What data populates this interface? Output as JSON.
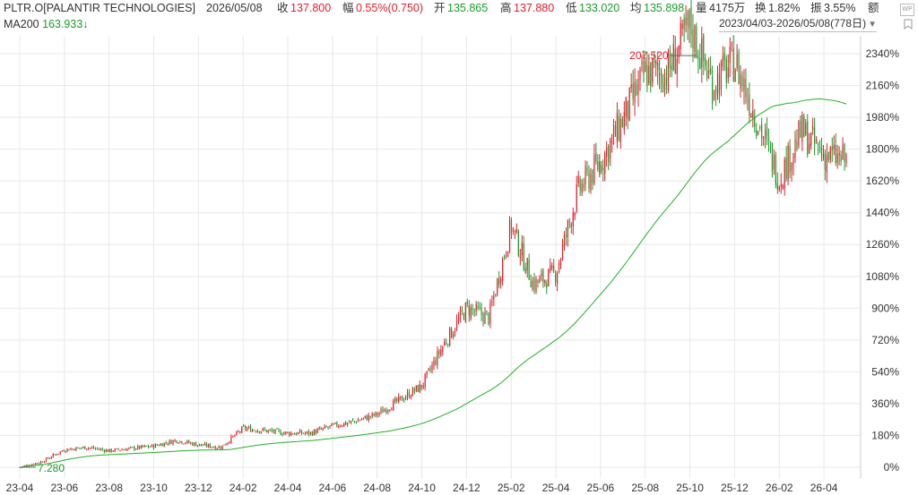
{
  "header": {
    "symbol": "PLTR.O[PALANTIR TECHNOLOGIES]",
    "date": "2026/05/08",
    "close_label": "收",
    "close_value": "137.800",
    "change_label": "幅",
    "change_value": "0.55%(0.750)",
    "open_label": "开",
    "open_value": "135.865",
    "high_label": "高",
    "high_value": "137.880",
    "low_label": "低",
    "low_value": "133.020",
    "avg_label": "均",
    "avg_value": "135.898",
    "volume_label": "量",
    "volume_value": "4175万",
    "turnover_label": "换",
    "turnover_value": "1.82%",
    "amplitude_label": "振",
    "amplitude_value": "3.55%",
    "amount_label": "额"
  },
  "ma": {
    "label": "MA200",
    "value": "163.933",
    "arrow": "↓"
  },
  "range": {
    "text": "2023/04/03-2026/05/08(778日)",
    "dropdown_icon": "triangle-down-icon"
  },
  "icons": {
    "top_right": "wp-icon",
    "bookmark": "bookmark-icon"
  },
  "colors": {
    "up": "#e0202b",
    "down": "#1a9c2a",
    "ma200": "#22b022",
    "grid": "#e8e8e8"
  },
  "chart_data": {
    "type": "candlestick",
    "scale": "percent change from first close",
    "y_ticks": [
      "2340%",
      "2160%",
      "1980%",
      "1800%",
      "1620%",
      "1440%",
      "1260%",
      "1080%",
      "900%",
      "720%",
      "540%",
      "360%",
      "180%",
      "0%"
    ],
    "y_tick_values": [
      2340,
      2160,
      1980,
      1800,
      1620,
      1440,
      1260,
      1080,
      900,
      720,
      540,
      360,
      180,
      0
    ],
    "ylim": [
      -40,
      2440
    ],
    "x_ticks": [
      "23-04",
      "23-06",
      "23-08",
      "23-10",
      "23-12",
      "24-02",
      "24-04",
      "24-06",
      "24-08",
      "24-10",
      "24-12",
      "25-02",
      "25-04",
      "25-06",
      "25-08",
      "25-10",
      "25-12",
      "26-02",
      "26-04"
    ],
    "annotations": [
      {
        "label": "207.520",
        "x": "25-10",
        "y_pct": 2390,
        "kind": "high"
      },
      {
        "label": "7.280",
        "x": "23-04",
        "y_pct": 0,
        "kind": "low"
      }
    ],
    "price_path": [
      [
        "23-04",
        7.5,
        0
      ],
      [
        "23-05",
        10,
        33
      ],
      [
        "23-06",
        15,
        100
      ],
      [
        "23-07",
        16,
        113
      ],
      [
        "23-08",
        14.5,
        93
      ],
      [
        "23-09",
        15.5,
        107
      ],
      [
        "23-10",
        16.5,
        120
      ],
      [
        "23-11",
        19,
        153
      ],
      [
        "23-12",
        17,
        127
      ],
      [
        "24-01",
        16,
        113
      ],
      [
        "24-02",
        24,
        220
      ],
      [
        "24-03",
        23,
        207
      ],
      [
        "24-04",
        22,
        193
      ],
      [
        "24-05",
        22,
        193
      ],
      [
        "24-06",
        25,
        233
      ],
      [
        "24-07",
        27,
        260
      ],
      [
        "24-08",
        30,
        300
      ],
      [
        "24-09",
        36,
        380
      ],
      [
        "24-10",
        42,
        460
      ],
      [
        "24-11",
        60,
        700
      ],
      [
        "24-12",
        75,
        900
      ],
      [
        "25-01",
        71,
        847
      ],
      [
        "25-02",
        110,
        1367
      ],
      [
        "25-03",
        85,
        1033
      ],
      [
        "25-04",
        90,
        1100
      ],
      [
        "25-05",
        125,
        1567
      ],
      [
        "25-06",
        137,
        1727
      ],
      [
        "25-07",
        155,
        1967
      ],
      [
        "25-08",
        175,
        2233
      ],
      [
        "25-09",
        175,
        2233
      ],
      [
        "25-10",
        195,
        2500
      ],
      [
        "25-11",
        170,
        2167
      ],
      [
        "25-12",
        180,
        2300
      ],
      [
        "26-01",
        155,
        1967
      ],
      [
        "26-02",
        130,
        1633
      ],
      [
        "26-03",
        150,
        1900
      ],
      [
        "26-04",
        140,
        1767
      ],
      [
        "26-05",
        137.8,
        1737
      ]
    ],
    "series": [
      {
        "name": "PLTR.O",
        "kind": "candles"
      },
      {
        "name": "MA200",
        "kind": "line"
      }
    ]
  }
}
